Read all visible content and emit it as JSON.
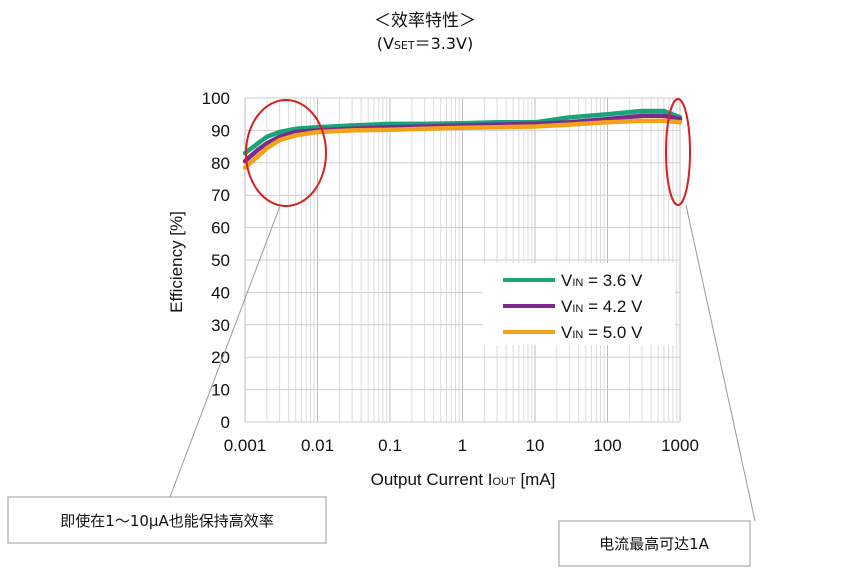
{
  "chart_data": {
    "type": "line",
    "title": "＜效率特性＞",
    "subtitle": {
      "open": "(V",
      "sub": "SET",
      "rest": "＝3.3V)"
    },
    "xlabel": {
      "text": "Output  Current I",
      "sub": "OUT",
      "unit": " [mA]"
    },
    "ylabel": "Efficiency [%]",
    "xscale": "log",
    "xlim": [
      0.001,
      1000
    ],
    "ylim": [
      0,
      100
    ],
    "x_ticks": [
      "0.001",
      "0.01",
      "0.1",
      "1",
      "10",
      "100",
      "1000"
    ],
    "y_ticks": [
      "0",
      "10",
      "20",
      "30",
      "40",
      "50",
      "60",
      "70",
      "80",
      "90",
      "100"
    ],
    "grid": true,
    "legend_position": "right-middle",
    "series": [
      {
        "name": "V_IN = 3.6 V",
        "label_main": "V",
        "label_sub": "IN",
        "label_rest": " = 3.6 V",
        "color": "#1aa37a",
        "x": [
          0.001,
          0.0015,
          0.002,
          0.003,
          0.005,
          0.01,
          0.03,
          0.1,
          0.3,
          1,
          3,
          10,
          30,
          100,
          300,
          600,
          1000
        ],
        "y": [
          83,
          86,
          88,
          89.5,
          90.5,
          91,
          91.5,
          92,
          92,
          92.2,
          92.5,
          92.5,
          94,
          95,
          96,
          96,
          94
        ]
      },
      {
        "name": "V_IN = 4.2 V",
        "label_main": "V",
        "label_sub": "IN",
        "label_rest": " = 4.2 V",
        "color": "#7b2a8c",
        "x": [
          0.001,
          0.0015,
          0.002,
          0.003,
          0.005,
          0.01,
          0.03,
          0.1,
          0.3,
          1,
          3,
          10,
          30,
          100,
          300,
          600,
          1000
        ],
        "y": [
          80.5,
          84,
          86,
          88,
          89.5,
          90,
          90.5,
          91,
          91.2,
          91.5,
          91.8,
          92,
          92.5,
          93.5,
          94.5,
          94.5,
          93.5
        ]
      },
      {
        "name": "V_IN = 5.0 V",
        "label_main": "V",
        "label_sub": "IN",
        "label_rest": " = 5.0 V",
        "color": "#f2a11a",
        "x": [
          0.001,
          0.0015,
          0.002,
          0.003,
          0.005,
          0.01,
          0.03,
          0.1,
          0.3,
          1,
          3,
          10,
          30,
          100,
          300,
          600,
          1000
        ],
        "y": [
          78.5,
          82,
          84.5,
          87,
          88.5,
          89.5,
          90,
          90.2,
          90.5,
          90.8,
          91,
          91.2,
          91.8,
          92.5,
          93,
          93,
          92.5
        ]
      }
    ],
    "annotations": [
      {
        "text": "即使在1～10μA也能保持高效率"
      },
      {
        "text": "电流最高可达1A"
      }
    ]
  }
}
